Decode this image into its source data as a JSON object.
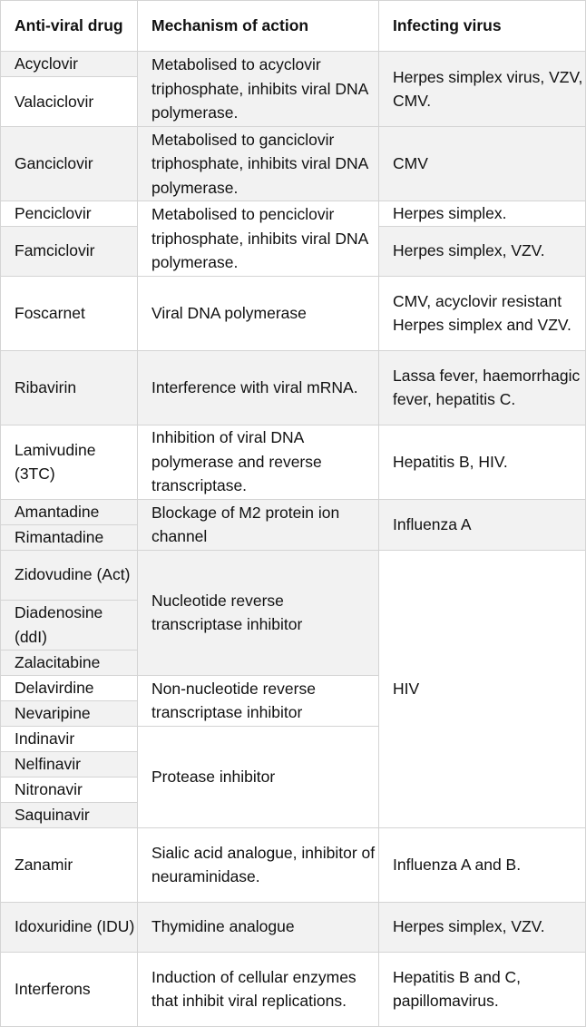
{
  "table": {
    "headers": {
      "drug": "Anti-viral drug",
      "mechanism": "Mechanism of action",
      "virus": "Infecting virus"
    },
    "drugs": [
      "Acyclovir",
      "Valaciclovir",
      "Ganciclovir",
      "Penciclovir",
      "Famciclovir",
      "Foscarnet",
      "Ribavirin",
      "Lamivudine (3TC)",
      "Amantadine",
      "Rimantadine",
      "Zidovudine (Act)",
      "Diadenosine (ddI)",
      "Zalacitabine",
      "Delavirdine",
      "Nevaripine",
      "Indinavir",
      "Nelfinavir",
      "Nitronavir",
      "Saquinavir",
      "Zanamir",
      "Idoxuridine (IDU)",
      "Interferons"
    ],
    "mechanisms": [
      "Metabolised to acyclovir triphosphate, inhibits viral DNA polymerase.",
      "Metabolised to ganciclovir triphosphate, inhibits viral DNA polymerase.",
      "Metabolised to penciclovir triphosphate, inhibits viral DNA polymerase.",
      "Viral DNA polymerase",
      "Interference with viral mRNA.",
      "Inhibition of viral DNA polymerase and reverse transcriptase.",
      "Blockage of M2 protein ion channel",
      "Nucleotide reverse transcriptase inhibitor",
      "Non-nucleotide reverse transcriptase inhibitor",
      "Protease inhibitor",
      "Sialic acid analogue, inhibitor of neuraminidase.",
      "Thymidine analogue",
      "Induction of cellular enzymes that inhibit viral replications."
    ],
    "viruses": [
      "Herpes simplex virus, VZV, CMV.",
      "CMV",
      "Herpes simplex.",
      "Herpes simplex, VZV.",
      "CMV, acyclovir resistant Herpes simplex and VZV.",
      "Lassa fever, haemorrhagic fever, hepatitis C.",
      "Hepatitis B, HIV.",
      "Influenza A",
      "HIV",
      "Influenza A and B.",
      "Herpes simplex, VZV.",
      "Hepatitis B and C, papillomavirus."
    ]
  }
}
